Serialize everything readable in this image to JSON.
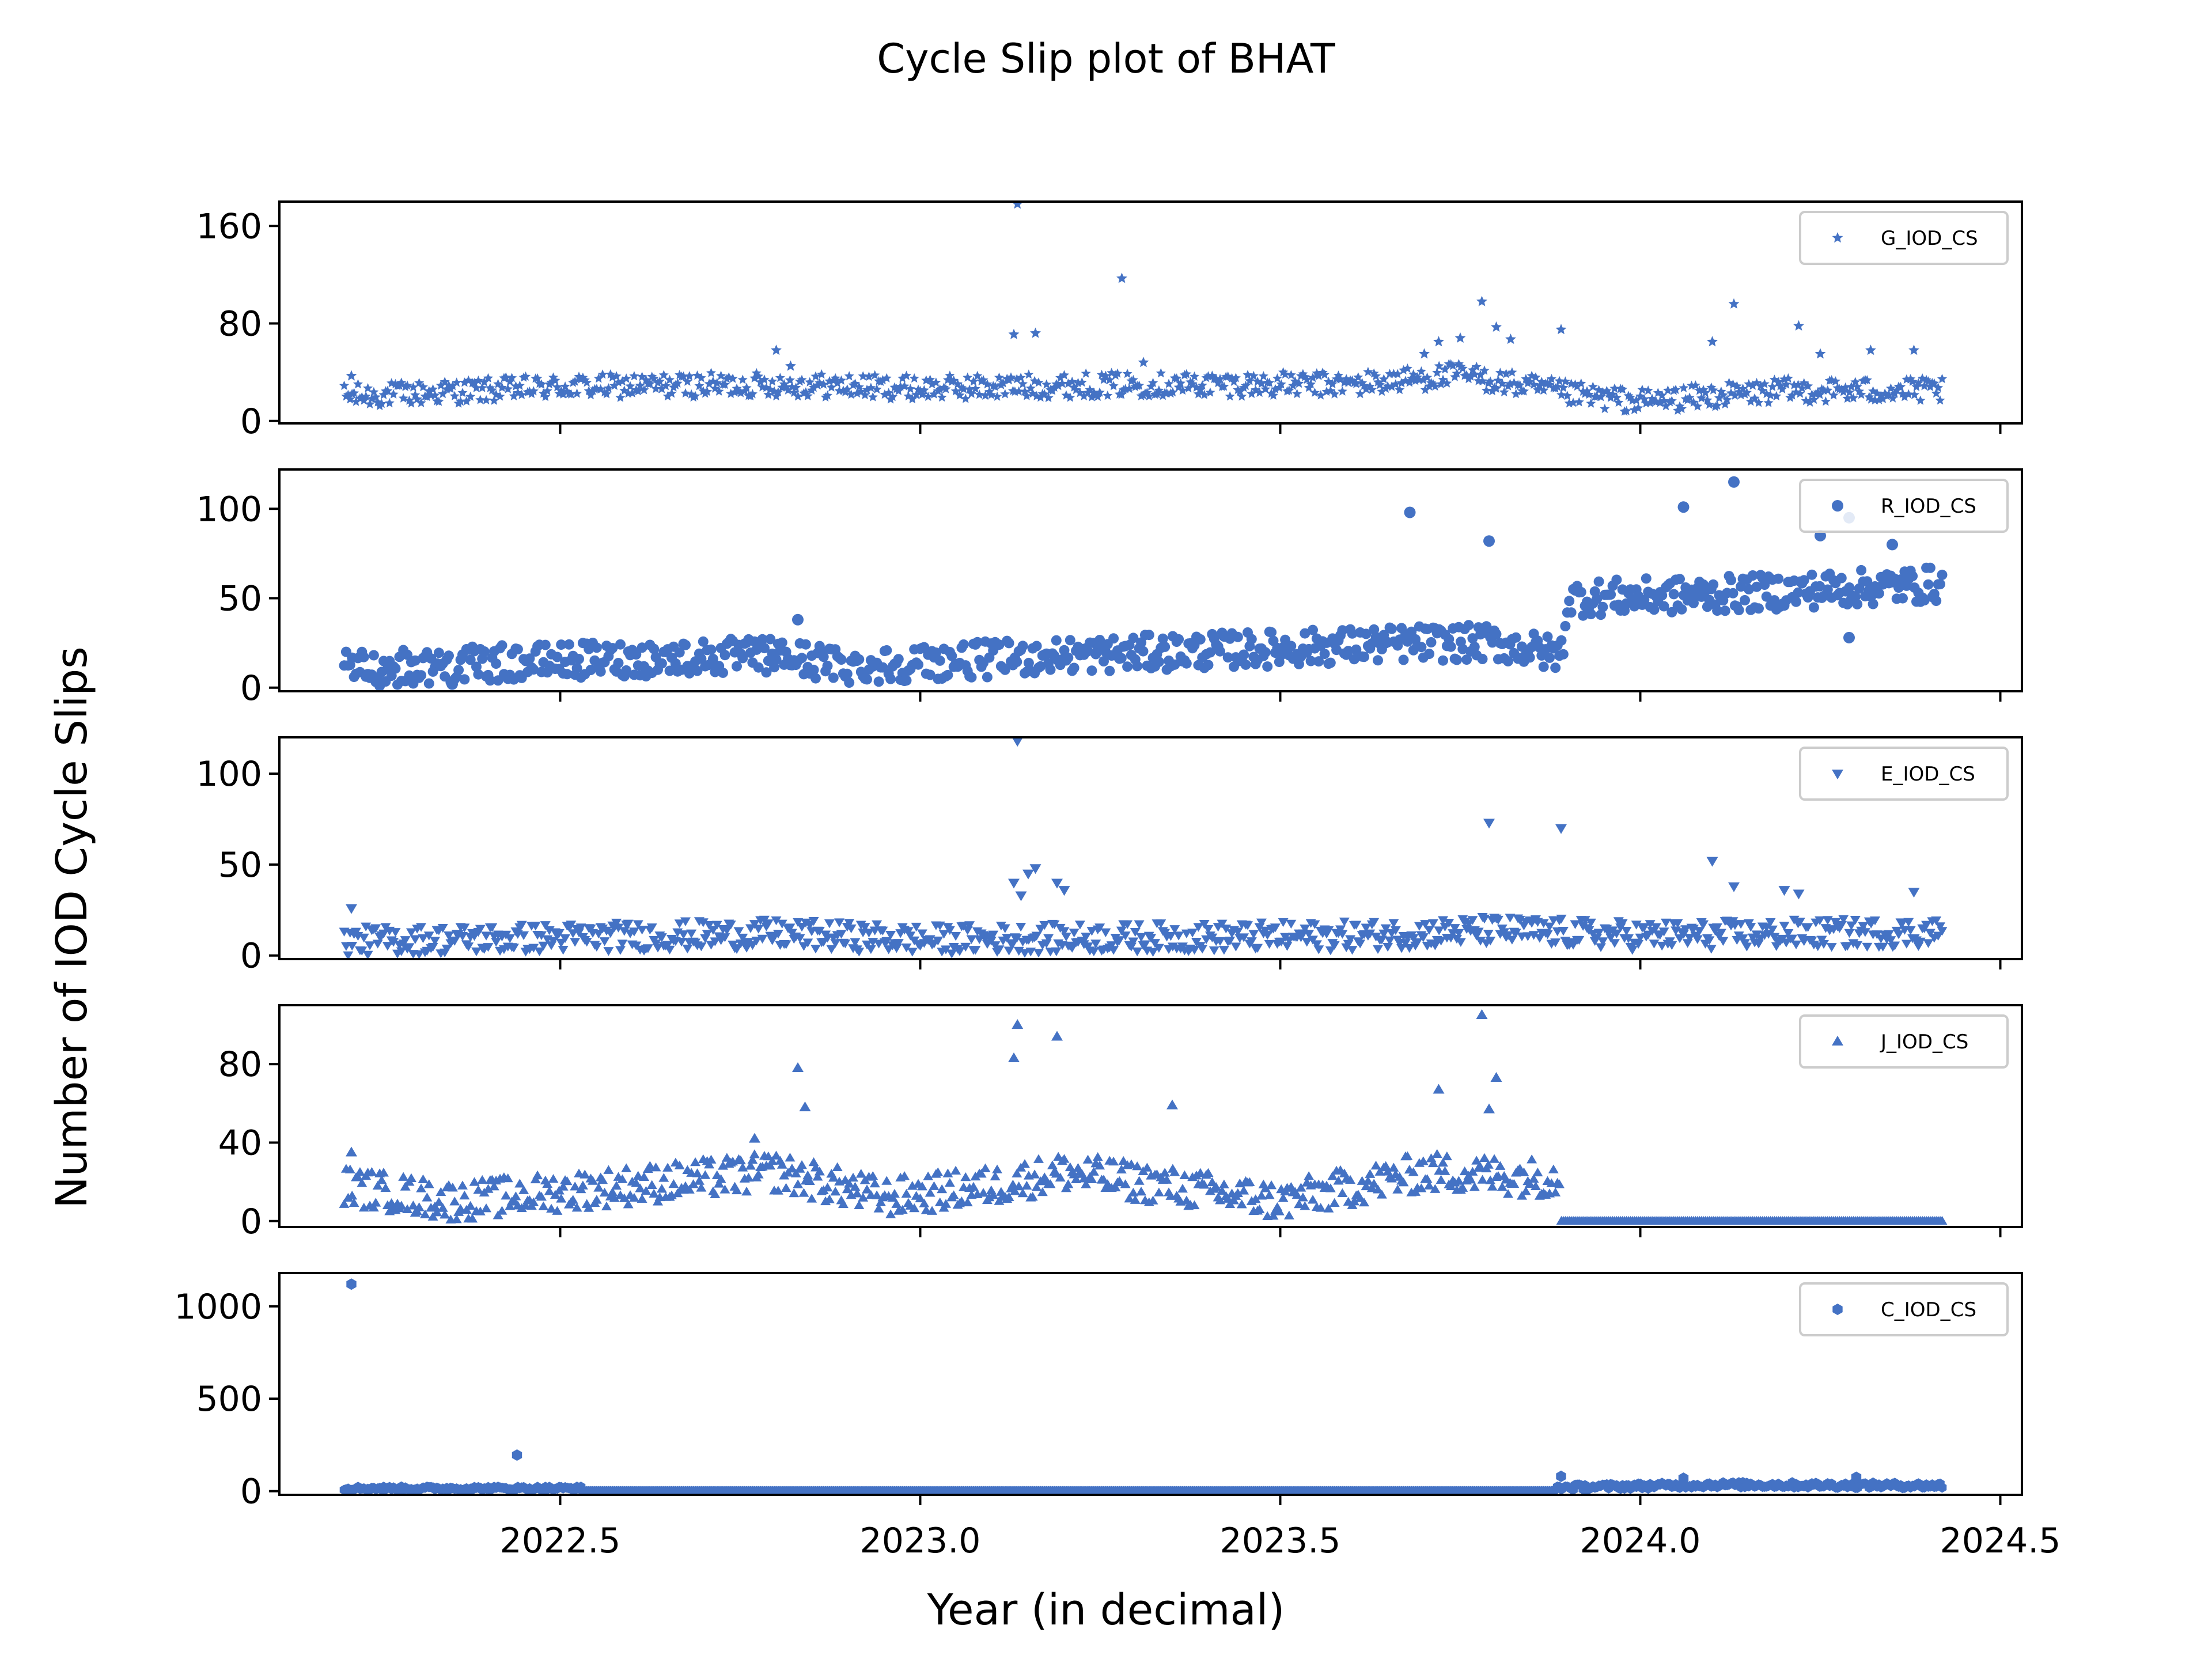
{
  "chart_data": {
    "type": "scatter",
    "title": "Cycle Slip plot of BHAT",
    "xlabel": "Year (in decimal)",
    "ylabel": "Number of IOD Cycle Slips",
    "xlim": [
      2022.11,
      2024.53
    ],
    "x_ticks": [
      2022.5,
      2023.0,
      2023.5,
      2024.0,
      2024.5
    ],
    "x_tick_labels": [
      "2022.5",
      "2023.0",
      "2023.5",
      "2024.0",
      "2024.5"
    ],
    "legend_position": "top-right",
    "marker_color": "#4472C4",
    "x_start": 2022.2,
    "x_end": 2024.42,
    "panels": [
      {
        "name": "G_IOD_CS",
        "marker": "star",
        "ylim": [
          -2,
          180
        ],
        "y_ticks": [
          0,
          80,
          160
        ],
        "y_tick_labels": [
          "0",
          "80",
          "160"
        ],
        "trend": [
          [
            2022.2,
            20
          ],
          [
            2022.5,
            28
          ],
          [
            2022.8,
            30
          ],
          [
            2023.0,
            27
          ],
          [
            2023.3,
            30
          ],
          [
            2023.6,
            30
          ],
          [
            2023.75,
            38
          ],
          [
            2023.9,
            22
          ],
          [
            2024.0,
            16
          ],
          [
            2024.2,
            25
          ],
          [
            2024.42,
            25
          ]
        ],
        "noise": 10,
        "outliers": [
          [
            2022.21,
            37
          ],
          [
            2022.8,
            58
          ],
          [
            2022.82,
            45
          ],
          [
            2023.13,
            71
          ],
          [
            2023.135,
            178
          ],
          [
            2023.16,
            72
          ],
          [
            2023.28,
            117
          ],
          [
            2023.31,
            48
          ],
          [
            2023.7,
            55
          ],
          [
            2023.72,
            65
          ],
          [
            2023.75,
            68
          ],
          [
            2023.78,
            98
          ],
          [
            2023.8,
            77
          ],
          [
            2023.82,
            67
          ],
          [
            2023.89,
            75
          ],
          [
            2024.1,
            65
          ],
          [
            2024.13,
            96
          ],
          [
            2024.22,
            78
          ],
          [
            2024.25,
            55
          ],
          [
            2024.32,
            58
          ],
          [
            2024.38,
            58
          ]
        ]
      },
      {
        "name": "R_IOD_CS",
        "marker": "circle",
        "ylim": [
          -2,
          122
        ],
        "y_ticks": [
          0,
          50,
          100
        ],
        "y_tick_labels": [
          "0",
          "50",
          "100"
        ],
        "trend": [
          [
            2022.2,
            10
          ],
          [
            2022.5,
            15
          ],
          [
            2022.8,
            18
          ],
          [
            2022.9,
            12
          ],
          [
            2023.0,
            14
          ],
          [
            2023.2,
            18
          ],
          [
            2023.5,
            22
          ],
          [
            2023.7,
            25
          ],
          [
            2023.8,
            25
          ],
          [
            2023.89,
            18
          ],
          [
            2023.9,
            50
          ],
          [
            2024.1,
            52
          ],
          [
            2024.42,
            58
          ]
        ],
        "noise": 10,
        "outliers": [
          [
            2022.35,
            2
          ],
          [
            2022.83,
            38
          ],
          [
            2023.68,
            98
          ],
          [
            2023.79,
            82
          ],
          [
            2024.06,
            101
          ],
          [
            2024.13,
            115
          ],
          [
            2024.25,
            85
          ],
          [
            2024.29,
            95
          ],
          [
            2024.35,
            80
          ],
          [
            2024.29,
            28
          ]
        ]
      },
      {
        "name": "E_IOD_CS",
        "marker": "triangle-down",
        "ylim": [
          -2,
          120
        ],
        "y_ticks": [
          0,
          50,
          100
        ],
        "y_tick_labels": [
          "0",
          "50",
          "100"
        ],
        "trend": [
          [
            2022.2,
            8
          ],
          [
            2022.8,
            12
          ],
          [
            2023.0,
            9
          ],
          [
            2023.3,
            10
          ],
          [
            2023.6,
            11
          ],
          [
            2023.8,
            14
          ],
          [
            2024.0,
            11
          ],
          [
            2024.42,
            13
          ]
        ],
        "noise": 8,
        "outliers": [
          [
            2022.21,
            26
          ],
          [
            2023.13,
            40
          ],
          [
            2023.135,
            118
          ],
          [
            2023.14,
            33
          ],
          [
            2023.15,
            45
          ],
          [
            2023.16,
            48
          ],
          [
            2023.19,
            40
          ],
          [
            2023.2,
            36
          ],
          [
            2023.79,
            73
          ],
          [
            2023.89,
            70
          ],
          [
            2024.1,
            52
          ],
          [
            2024.13,
            38
          ],
          [
            2024.2,
            36
          ],
          [
            2024.22,
            34
          ],
          [
            2024.38,
            35
          ]
        ]
      },
      {
        "name": "J_IOD_CS",
        "marker": "triangle-up",
        "ylim": [
          -3,
          110
        ],
        "y_ticks": [
          0,
          40,
          80
        ],
        "y_tick_labels": [
          "0",
          "40",
          "80"
        ],
        "trend": [
          [
            2022.2,
            18
          ],
          [
            2022.35,
            10
          ],
          [
            2022.5,
            15
          ],
          [
            2022.8,
            25
          ],
          [
            2022.95,
            12
          ],
          [
            2023.1,
            18
          ],
          [
            2023.2,
            25
          ],
          [
            2023.4,
            15
          ],
          [
            2023.5,
            10
          ],
          [
            2023.7,
            25
          ],
          [
            2023.88,
            22
          ]
        ],
        "noise": 10,
        "after": 2023.89,
        "after_value": 0,
        "outliers": [
          [
            2022.21,
            35
          ],
          [
            2022.77,
            42
          ],
          [
            2022.83,
            78
          ],
          [
            2022.84,
            58
          ],
          [
            2023.13,
            83
          ],
          [
            2023.135,
            100
          ],
          [
            2023.19,
            94
          ],
          [
            2023.35,
            59
          ],
          [
            2023.72,
            67
          ],
          [
            2023.78,
            105
          ],
          [
            2023.8,
            73
          ],
          [
            2023.79,
            57
          ]
        ]
      },
      {
        "name": "C_IOD_CS",
        "marker": "hexagon",
        "ylim": [
          -20,
          1180
        ],
        "y_ticks": [
          0,
          500,
          1000
        ],
        "y_tick_labels": [
          "0",
          "500",
          "1000"
        ],
        "trend": [
          [
            2022.2,
            15
          ],
          [
            2022.52,
            15
          ]
        ],
        "noise": 10,
        "zero_range": [
          2022.53,
          2023.88
        ],
        "trend2": [
          [
            2023.89,
            20
          ],
          [
            2024.1,
            35
          ],
          [
            2024.42,
            30
          ]
        ],
        "outliers": [
          [
            2022.21,
            1120
          ],
          [
            2022.44,
            195
          ],
          [
            2023.89,
            80
          ],
          [
            2024.06,
            70
          ],
          [
            2024.3,
            75
          ]
        ]
      }
    ]
  }
}
